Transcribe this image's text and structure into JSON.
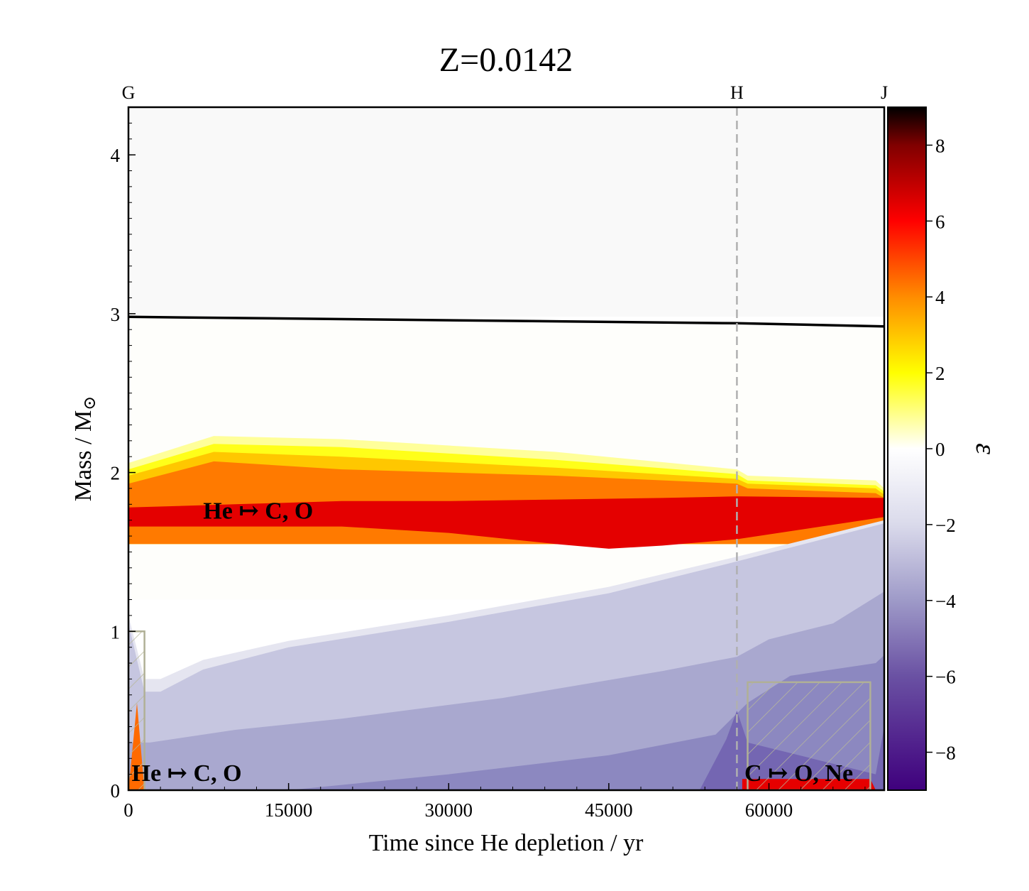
{
  "chart_data": {
    "type": "heatmap",
    "title": "Z=0.0142",
    "xlabel": "Time since He depletion / yr",
    "ylabel": "Mass / M",
    "ylabel_sub": "⊙",
    "xlim": [
      0,
      70800
    ],
    "ylim": [
      0,
      4.3
    ],
    "x_ticks": [
      0,
      15000,
      30000,
      45000,
      60000
    ],
    "y_ticks": [
      0,
      1,
      2,
      3,
      4
    ],
    "phase_markers": [
      {
        "label": "G",
        "x": 0,
        "line": false
      },
      {
        "label": "H",
        "x": 57000,
        "line": true
      },
      {
        "label": "J",
        "x": 70800,
        "line": false
      }
    ],
    "stellar_mass_boundary": {
      "x": [
        0,
        57000,
        70800
      ],
      "y": [
        2.98,
        2.94,
        2.92
      ]
    },
    "regions": [
      {
        "name": "envelope",
        "level": -0.3,
        "color": "#f9f9f9",
        "x": [
          0,
          70800,
          70800,
          0
        ],
        "y": [
          4.3,
          4.3,
          2.98,
          2.98
        ]
      },
      {
        "name": "intershell",
        "level": 0.1,
        "color": "#fefefb",
        "x": [
          0,
          70800,
          70800,
          57000,
          0
        ],
        "y": [
          2.98,
          2.92,
          1.2,
          1.2,
          1.2
        ]
      },
      {
        "name": "shell-outer-fringe",
        "level": 1.0,
        "color": "#ffff9a",
        "x": [
          0,
          8000,
          20000,
          40000,
          57000,
          58000,
          70000,
          70800,
          70800,
          0
        ],
        "y": [
          2.06,
          2.23,
          2.21,
          2.13,
          2.02,
          1.98,
          1.95,
          1.9,
          1.55,
          1.55
        ]
      },
      {
        "name": "shell-yellow",
        "level": 2.0,
        "color": "#ffff19",
        "x": [
          0,
          8000,
          20000,
          40000,
          57000,
          58000,
          70000,
          70800,
          70800,
          0
        ],
        "y": [
          2.02,
          2.18,
          2.16,
          2.08,
          1.99,
          1.95,
          1.92,
          1.88,
          1.55,
          1.55
        ]
      },
      {
        "name": "shell-amber",
        "level": 3.0,
        "color": "#ffc700",
        "x": [
          0,
          8000,
          20000,
          40000,
          57000,
          58000,
          70000,
          70800,
          70800,
          0
        ],
        "y": [
          1.98,
          2.13,
          2.1,
          2.03,
          1.96,
          1.93,
          1.9,
          1.86,
          1.55,
          1.55
        ]
      },
      {
        "name": "shell-orange",
        "level": 4.0,
        "color": "#ff7a00",
        "x": [
          0,
          8000,
          20000,
          40000,
          57000,
          58000,
          70000,
          70800,
          70800,
          0
        ],
        "y": [
          1.93,
          2.07,
          2.02,
          1.98,
          1.93,
          1.9,
          1.87,
          1.84,
          1.55,
          1.55
        ]
      },
      {
        "name": "shell-red-band",
        "level": 5.5,
        "color": "#e40000",
        "x": [
          0,
          10000,
          20000,
          30000,
          40000,
          50000,
          57000,
          70800,
          70800,
          57000,
          50000,
          45000,
          40000,
          30000,
          20000,
          10000,
          0
        ],
        "y": [
          1.78,
          1.8,
          1.82,
          1.82,
          1.83,
          1.84,
          1.85,
          1.84,
          1.72,
          1.58,
          1.54,
          1.52,
          1.55,
          1.62,
          1.66,
          1.66,
          1.66
        ]
      },
      {
        "name": "core-lavender-2",
        "level": -2.0,
        "color": "#e5e5f0",
        "x": [
          0,
          1500,
          3000,
          7000,
          15000,
          30000,
          45000,
          57000,
          70800,
          70800,
          0
        ],
        "y": [
          1.1,
          0.7,
          0.7,
          0.82,
          0.94,
          1.1,
          1.28,
          1.47,
          1.7,
          0,
          0
        ]
      },
      {
        "name": "core-lavender-3",
        "level": -3.0,
        "color": "#c6c6e0",
        "x": [
          0,
          1500,
          3000,
          7000,
          15000,
          30000,
          45000,
          57000,
          70800,
          70800,
          0
        ],
        "y": [
          1.05,
          0.62,
          0.62,
          0.76,
          0.9,
          1.06,
          1.24,
          1.44,
          1.68,
          0,
          0
        ]
      },
      {
        "name": "core-lavender-4",
        "level": -4.0,
        "color": "#a9a8cf",
        "x": [
          0,
          2000,
          10000,
          20000,
          35000,
          50000,
          57000,
          60000,
          66000,
          70800,
          70800,
          0
        ],
        "y": [
          0.3,
          0.3,
          0.38,
          0.45,
          0.58,
          0.75,
          0.84,
          0.95,
          1.05,
          1.25,
          0,
          0
        ]
      },
      {
        "name": "core-lavender-5",
        "level": -5.0,
        "color": "#8c88c0",
        "x": [
          15000,
          30000,
          45000,
          55000,
          58000,
          62000,
          70000,
          70800,
          70800,
          15000
        ],
        "y": [
          0,
          0.1,
          0.22,
          0.35,
          0.55,
          0.72,
          0.8,
          0.85,
          0,
          0
        ]
      },
      {
        "name": "core-lavender-6",
        "level": -6.0,
        "color": "#7466b2",
        "x": [
          53500,
          56000,
          57000,
          58000,
          70000,
          70800,
          70800,
          53500
        ],
        "y": [
          0,
          0.32,
          0.5,
          0.3,
          0.1,
          0.4,
          0,
          0
        ]
      },
      {
        "name": "core-he-burning",
        "level": 4.5,
        "color": "#ff6a00",
        "x": [
          0,
          800,
          1500,
          0
        ],
        "y": [
          0,
          0.55,
          0,
          0
        ]
      },
      {
        "name": "core-c-burning",
        "level": 6.0,
        "color": "#e60000",
        "x": [
          57500,
          69500,
          70000,
          57500
        ],
        "y": [
          0.07,
          0.07,
          0,
          0
        ]
      }
    ],
    "convective_zones": [
      {
        "name": "core-he-convection",
        "x": [
          0,
          1500,
          1500,
          0
        ],
        "y": [
          1.0,
          1.0,
          0,
          0
        ]
      },
      {
        "name": "core-c-convection",
        "x": [
          58000,
          69500,
          69500,
          58000
        ],
        "y": [
          0.68,
          0.68,
          0,
          0
        ]
      }
    ],
    "annotations": [
      {
        "text": "He ↦ C, O",
        "x": 7000,
        "y": 1.7
      },
      {
        "text": "He ↦ C, O",
        "x": 300,
        "y": 0.05
      },
      {
        "text": "C ↦ O, Ne",
        "x": 57700,
        "y": 0.05
      }
    ],
    "colorbar": {
      "label": "ε",
      "range": [
        -9,
        9
      ],
      "ticks": [
        -8,
        -6,
        -4,
        -2,
        0,
        2,
        4,
        6,
        8
      ],
      "stops": [
        {
          "value": -9,
          "color": "#3f007d"
        },
        {
          "value": -6,
          "color": "#6a51a3"
        },
        {
          "value": -4,
          "color": "#9e9ac8"
        },
        {
          "value": -2,
          "color": "#dadaeb"
        },
        {
          "value": 0,
          "color": "#ffffff"
        },
        {
          "value": 2,
          "color": "#ffff00"
        },
        {
          "value": 4,
          "color": "#ff8c00"
        },
        {
          "value": 6,
          "color": "#ff0000"
        },
        {
          "value": 8,
          "color": "#800000"
        },
        {
          "value": 9,
          "color": "#000000"
        }
      ]
    }
  }
}
